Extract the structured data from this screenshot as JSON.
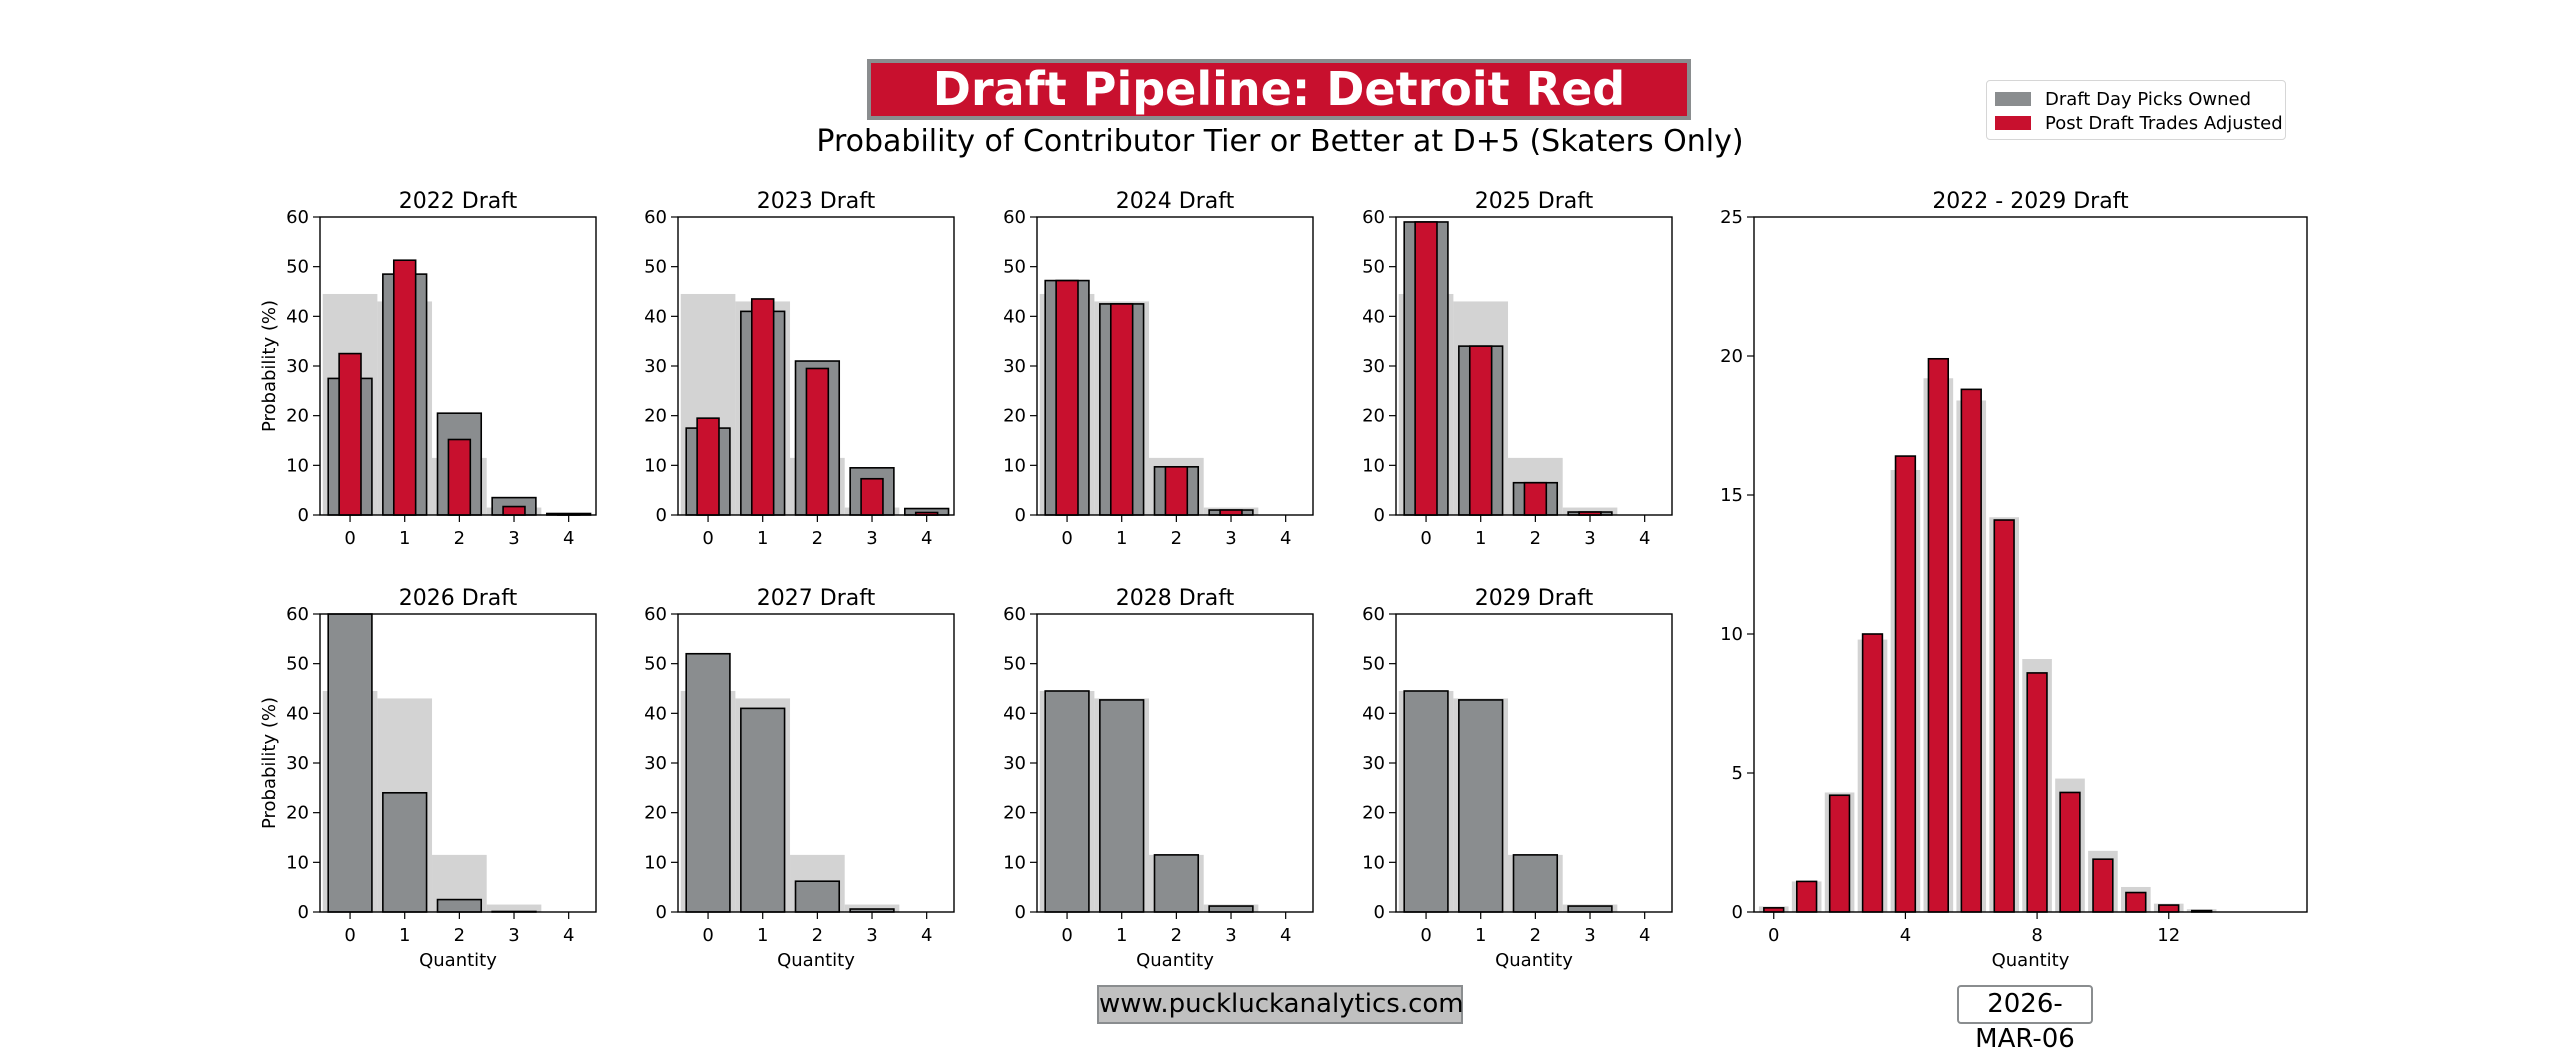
{
  "header": {
    "title": "Draft Pipeline: Detroit Red Wings",
    "subtitle": "Probability of Contributor Tier or Better at D+5 (Skaters Only)"
  },
  "legend": {
    "items": [
      {
        "label": "Draft Day Picks Owned",
        "color": "#8a8d8f"
      },
      {
        "label": "Post Draft Trades Adjusted",
        "color": "#c8102e"
      }
    ]
  },
  "footer": {
    "website": "www.puckluckanalytics.com",
    "date": "2026-MAR-06"
  },
  "colors": {
    "owned": "#8a8d8f",
    "adjusted": "#c8102e",
    "baseline": "#d3d3d3"
  },
  "chart_data": [
    {
      "type": "bar",
      "title": "2022 Draft",
      "xlabel": "",
      "ylabel": "Probability (%)",
      "categories": [
        "0",
        "1",
        "2",
        "3",
        "4"
      ],
      "ylim": [
        0,
        60
      ],
      "yticks": [
        "0",
        "10",
        "20",
        "30",
        "40",
        "50",
        "60"
      ],
      "series": [
        {
          "name": "Baseline",
          "values": [
            44.5,
            43,
            11.5,
            1.5,
            0
          ]
        },
        {
          "name": "Draft Day Picks Owned",
          "values": [
            27.5,
            48.5,
            20.5,
            3.5,
            0.3
          ]
        },
        {
          "name": "Post Draft Trades Adjusted",
          "values": [
            32.5,
            51.3,
            15.2,
            1.7,
            0.2
          ]
        }
      ]
    },
    {
      "type": "bar",
      "title": "2023 Draft",
      "xlabel": "",
      "ylabel": "",
      "categories": [
        "0",
        "1",
        "2",
        "3",
        "4"
      ],
      "ylim": [
        0,
        60
      ],
      "yticks": [
        "0",
        "10",
        "20",
        "30",
        "40",
        "50",
        "60"
      ],
      "series": [
        {
          "name": "Baseline",
          "values": [
            44.5,
            43,
            11.5,
            1.5,
            0
          ]
        },
        {
          "name": "Draft Day Picks Owned",
          "values": [
            17.5,
            41,
            31,
            9.5,
            1.3
          ]
        },
        {
          "name": "Post Draft Trades Adjusted",
          "values": [
            19.5,
            43.5,
            29.5,
            7.3,
            0.5
          ]
        }
      ]
    },
    {
      "type": "bar",
      "title": "2024 Draft",
      "xlabel": "",
      "ylabel": "",
      "categories": [
        "0",
        "1",
        "2",
        "3",
        "4"
      ],
      "ylim": [
        0,
        60
      ],
      "yticks": [
        "0",
        "10",
        "20",
        "30",
        "40",
        "50",
        "60"
      ],
      "series": [
        {
          "name": "Baseline",
          "values": [
            44.5,
            43,
            11.5,
            1.5,
            0
          ]
        },
        {
          "name": "Draft Day Picks Owned",
          "values": [
            47.2,
            42.5,
            9.7,
            1.0,
            0
          ]
        },
        {
          "name": "Post Draft Trades Adjusted",
          "values": [
            47.2,
            42.5,
            9.7,
            1.0,
            0
          ]
        }
      ]
    },
    {
      "type": "bar",
      "title": "2025 Draft",
      "xlabel": "",
      "ylabel": "",
      "categories": [
        "0",
        "1",
        "2",
        "3",
        "4"
      ],
      "ylim": [
        0,
        60
      ],
      "yticks": [
        "0",
        "10",
        "20",
        "30",
        "40",
        "50",
        "60"
      ],
      "series": [
        {
          "name": "Baseline",
          "values": [
            44.5,
            43,
            11.5,
            1.5,
            0
          ]
        },
        {
          "name": "Draft Day Picks Owned",
          "values": [
            59,
            34,
            6.5,
            0.6,
            0
          ]
        },
        {
          "name": "Post Draft Trades Adjusted",
          "values": [
            59,
            34,
            6.5,
            0.6,
            0
          ]
        }
      ]
    },
    {
      "type": "bar",
      "title": "2026 Draft",
      "xlabel": "Quantity",
      "ylabel": "Probability (%)",
      "categories": [
        "0",
        "1",
        "2",
        "3",
        "4"
      ],
      "ylim": [
        0,
        60
      ],
      "yticks": [
        "0",
        "10",
        "20",
        "30",
        "40",
        "50",
        "60"
      ],
      "series": [
        {
          "name": "Baseline",
          "values": [
            44.5,
            43,
            11.5,
            1.5,
            0
          ]
        },
        {
          "name": "Draft Day Picks Owned",
          "values": [
            60,
            24,
            2.5,
            0.1,
            0
          ]
        }
      ]
    },
    {
      "type": "bar",
      "title": "2027 Draft",
      "xlabel": "Quantity",
      "ylabel": "",
      "categories": [
        "0",
        "1",
        "2",
        "3",
        "4"
      ],
      "ylim": [
        0,
        60
      ],
      "yticks": [
        "0",
        "10",
        "20",
        "30",
        "40",
        "50",
        "60"
      ],
      "series": [
        {
          "name": "Baseline",
          "values": [
            44.5,
            43,
            11.5,
            1.5,
            0
          ]
        },
        {
          "name": "Draft Day Picks Owned",
          "values": [
            52,
            41,
            6.2,
            0.6,
            0
          ]
        }
      ]
    },
    {
      "type": "bar",
      "title": "2028 Draft",
      "xlabel": "Quantity",
      "ylabel": "",
      "categories": [
        "0",
        "1",
        "2",
        "3",
        "4"
      ],
      "ylim": [
        0,
        60
      ],
      "yticks": [
        "0",
        "10",
        "20",
        "30",
        "40",
        "50",
        "60"
      ],
      "series": [
        {
          "name": "Baseline",
          "values": [
            44.5,
            43,
            11.5,
            1.5,
            0
          ]
        },
        {
          "name": "Draft Day Picks Owned",
          "values": [
            44.5,
            42.7,
            11.5,
            1.2,
            0
          ]
        }
      ]
    },
    {
      "type": "bar",
      "title": "2029 Draft",
      "xlabel": "Quantity",
      "ylabel": "",
      "categories": [
        "0",
        "1",
        "2",
        "3",
        "4"
      ],
      "ylim": [
        0,
        60
      ],
      "yticks": [
        "0",
        "10",
        "20",
        "30",
        "40",
        "50",
        "60"
      ],
      "series": [
        {
          "name": "Baseline",
          "values": [
            44.5,
            43,
            11.5,
            1.5,
            0
          ]
        },
        {
          "name": "Draft Day Picks Owned",
          "values": [
            44.5,
            42.7,
            11.5,
            1.2,
            0
          ]
        }
      ]
    },
    {
      "type": "bar",
      "title": "2022 - 2029 Draft",
      "xlabel": "Quantity",
      "ylabel": "",
      "categories": [
        "0",
        "1",
        "2",
        "3",
        "4",
        "5",
        "6",
        "7",
        "8",
        "9",
        "10",
        "11",
        "12",
        "13",
        "14",
        "15",
        "16",
        "17",
        "18",
        "19"
      ],
      "xticks": [
        {
          "value": 0,
          "label": "0"
        },
        {
          "value": 4,
          "label": "4"
        },
        {
          "value": 8,
          "label": "8"
        },
        {
          "value": 12,
          "label": "12"
        }
      ],
      "xlim": [
        -0.6,
        16.2
      ],
      "ylim": [
        0,
        25
      ],
      "yticks": [
        "0",
        "5",
        "10",
        "15",
        "20",
        "25"
      ],
      "series": [
        {
          "name": "Baseline",
          "values": [
            0.2,
            1.1,
            4.3,
            9.8,
            15.9,
            19.2,
            18.4,
            14.2,
            9.1,
            4.8,
            2.2,
            0.9,
            0.3,
            0.1,
            0,
            0,
            0,
            0,
            0,
            0
          ]
        },
        {
          "name": "Post Draft Trades Adjusted",
          "values": [
            0.15,
            1.1,
            4.2,
            10,
            16.4,
            19.9,
            18.8,
            14.1,
            8.6,
            4.3,
            1.9,
            0.7,
            0.25,
            0.05,
            0,
            0,
            0,
            0,
            0,
            0
          ]
        }
      ]
    }
  ]
}
